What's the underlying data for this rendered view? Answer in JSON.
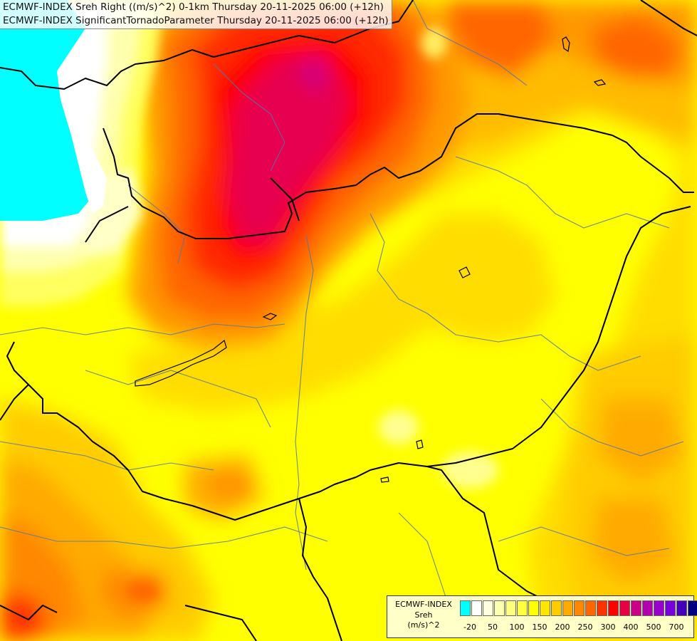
{
  "titles": {
    "line1": "ECMWF-INDEX Sreh Right ((m/s)^2) 0-1km Thursday 20-11-2025 06:00 (+12h)",
    "line2": "ECMWF-INDEX SignificantTornadoParameter Thursday 20-11-2025 06:00 (+12h)"
  },
  "legend": {
    "title_line1": "ECMWF-INDEX",
    "title_line2": "Sreh",
    "title_line3": "(m/s)^2",
    "colors": [
      "#00ffff",
      "#ffffff",
      "#ffffe0",
      "#ffffb0",
      "#ffff80",
      "#ffff40",
      "#ffff00",
      "#ffe600",
      "#ffcc00",
      "#ffaa00",
      "#ff8800",
      "#ff6600",
      "#ff3300",
      "#ff0000",
      "#e60044",
      "#cc0088",
      "#b000b0",
      "#9900cc",
      "#7700dd",
      "#4400bb",
      "#000080"
    ],
    "labels": [
      "-20",
      "50",
      "100",
      "150",
      "200",
      "250",
      "300",
      "400",
      "500",
      "700"
    ]
  },
  "field_colors": {
    "cyan": "#00ffff",
    "white": "#ffffff",
    "pale": "#ffffc0",
    "light_yellow": "#ffff80",
    "yellow": "#ffff00",
    "gold": "#ffdd00",
    "orange_light": "#ffbb00",
    "orange": "#ff9900",
    "orange_dark": "#ff6600",
    "red_orange": "#ff3300",
    "red": "#ff0000",
    "crimson": "#e6004f",
    "magenta": "#cc0088",
    "border": "#000000",
    "river": "#5577aa"
  }
}
